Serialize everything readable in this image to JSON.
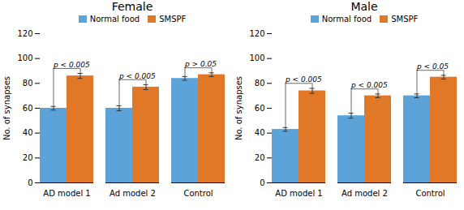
{
  "chart_data": [
    {
      "type": "bar",
      "title": "Female",
      "categories": [
        "AD model 1",
        "Ad model 2",
        "Control"
      ],
      "series": [
        {
          "name": "Normal food",
          "color": "#5ba3d9",
          "values": [
            60,
            60,
            84
          ],
          "errors": [
            1.5,
            2.0,
            1.5
          ]
        },
        {
          "name": "SMSPF",
          "color": "#e07828",
          "values": [
            86,
            77,
            87
          ],
          "errors": [
            2.0,
            2.0,
            1.5
          ]
        }
      ],
      "annotations": [
        "p < 0.005",
        "p < 0.005",
        "p > 0.05"
      ],
      "ylabel": "No. of synapses",
      "ylim": [
        0,
        120
      ],
      "yticks": [
        0,
        20,
        40,
        60,
        80,
        100,
        120
      ],
      "legend": "top",
      "grid": false
    },
    {
      "type": "bar",
      "title": "Male",
      "categories": [
        "AD model 1",
        "Ad model 2",
        "Control"
      ],
      "series": [
        {
          "name": "Normal food",
          "color": "#5ba3d9",
          "values": [
            43,
            54,
            70
          ],
          "errors": [
            1.5,
            2.0,
            1.5
          ]
        },
        {
          "name": "SMSPF",
          "color": "#e07828",
          "values": [
            74,
            70,
            85
          ],
          "errors": [
            2.0,
            1.5,
            1.5
          ]
        }
      ],
      "annotations": [
        "p < 0.005",
        "p < 0.005",
        "p < 0.05"
      ],
      "ylabel": "No. of synapses",
      "ylim": [
        0,
        120
      ],
      "yticks": [
        0,
        20,
        40,
        60,
        80,
        100,
        120
      ],
      "legend": "top",
      "grid": false
    }
  ]
}
